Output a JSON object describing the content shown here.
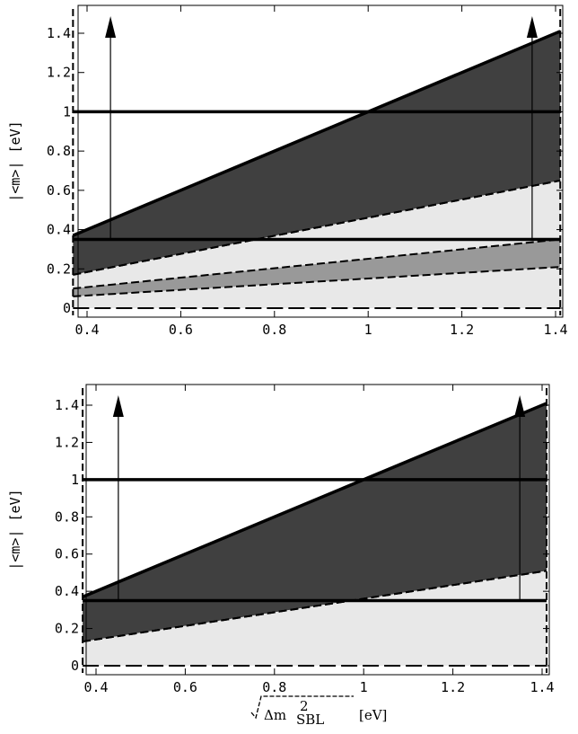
{
  "chart_data": [
    {
      "type": "area",
      "panel": "top",
      "xlim": [
        0.37,
        1.41
      ],
      "ylim": [
        0.0,
        1.5
      ],
      "xticks": [
        0.4,
        0.6,
        0.8,
        1.0,
        1.2,
        1.4
      ],
      "xtick_labels": [
        "0.4",
        "0.6",
        "0.8",
        "1",
        "1.2",
        "1.4"
      ],
      "yticks": [
        0,
        0.2,
        0.4,
        0.6,
        0.8,
        1.0,
        1.2,
        1.4
      ],
      "ytick_labels": [
        "0",
        "0.2",
        "0.4",
        "0.6",
        "0.8",
        "1",
        "1.2",
        "1.4"
      ],
      "ylabel": "|<m>| [eV]",
      "xlabel": "",
      "bands": [
        {
          "shade": "dark",
          "upper": [
            [
              0.37,
              0.37
            ],
            [
              1.41,
              1.41
            ]
          ],
          "lower": [
            [
              0.37,
              0.17
            ],
            [
              1.41,
              0.65
            ]
          ]
        },
        {
          "shade": "light",
          "upper": [
            [
              0.37,
              0.17
            ],
            [
              1.41,
              0.65
            ]
          ],
          "lower": [
            [
              0.37,
              0.0
            ],
            [
              1.41,
              0.0
            ]
          ]
        },
        {
          "shade": "mid",
          "upper": [
            [
              0.37,
              0.1
            ],
            [
              1.41,
              0.35
            ]
          ],
          "lower": [
            [
              0.37,
              0.06
            ],
            [
              1.41,
              0.21
            ]
          ]
        }
      ],
      "hlines": [
        1.0,
        0.35
      ],
      "vlines_dashed": [
        0.37,
        1.41
      ],
      "baseline_dashed": 0.0,
      "arrows": [
        {
          "x": 0.45,
          "y_from": 0.35,
          "y_to": 1.5
        },
        {
          "x": 1.35,
          "y_from": 0.35,
          "y_to": 1.5
        }
      ]
    },
    {
      "type": "area",
      "panel": "bottom",
      "xlim": [
        0.37,
        1.41
      ],
      "ylim": [
        0.0,
        1.5
      ],
      "xticks": [
        0.4,
        0.6,
        0.8,
        1.0,
        1.2,
        1.4
      ],
      "xtick_labels": [
        "0.4",
        "0.6",
        "0.8",
        "1",
        "1.2",
        "1.4"
      ],
      "yticks": [
        0,
        0.2,
        0.4,
        0.6,
        0.8,
        1.0,
        1.2,
        1.4
      ],
      "ytick_labels": [
        "0",
        "0.2",
        "0.4",
        "0.6",
        "0.8",
        "1",
        "1.2",
        "1.4"
      ],
      "ylabel": "|<m>| [eV]",
      "xlabel_prefix": "Δm",
      "xlabel_sup": "2",
      "xlabel_sub": "SBL",
      "xlabel_unit": "[eV]",
      "bands": [
        {
          "shade": "dark",
          "upper": [
            [
              0.37,
              0.37
            ],
            [
              1.41,
              1.41
            ]
          ],
          "lower": [
            [
              0.37,
              0.13
            ],
            [
              1.41,
              0.51
            ]
          ]
        },
        {
          "shade": "light",
          "upper": [
            [
              0.37,
              0.13
            ],
            [
              1.41,
              0.51
            ]
          ],
          "lower": [
            [
              0.37,
              0.0
            ],
            [
              1.41,
              0.0
            ]
          ]
        }
      ],
      "hlines": [
        1.0,
        0.35
      ],
      "vlines_dashed": [
        0.37,
        1.41
      ],
      "baseline_dashed": 0.0,
      "arrows": [
        {
          "x": 0.45,
          "y_from": 0.35,
          "y_to": 1.5
        },
        {
          "x": 1.35,
          "y_from": 0.35,
          "y_to": 1.5
        }
      ]
    }
  ],
  "colors": {
    "dark": "#404040",
    "mid": "#999999",
    "light": "#e8e8e8",
    "line": "#000000"
  }
}
